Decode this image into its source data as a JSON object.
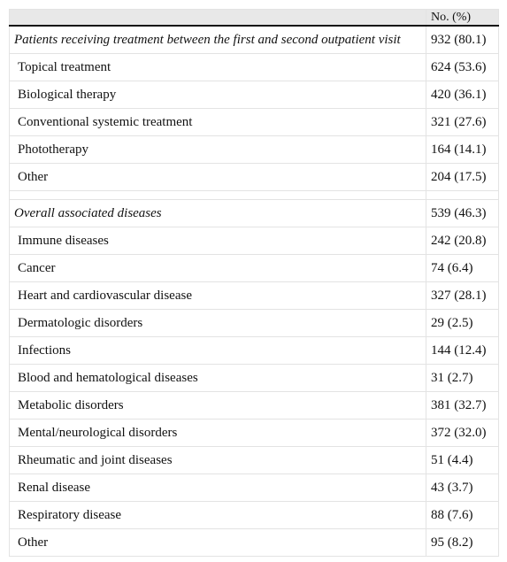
{
  "table": {
    "header": [
      "",
      "No. (%)"
    ],
    "sections": [
      {
        "title": "Patients receiving treatment between the first and second outpatient visit",
        "value": "932 (80.1)",
        "rows": [
          [
            "Topical treatment",
            "624 (53.6)"
          ],
          [
            "Biological therapy",
            "420 (36.1)"
          ],
          [
            "Conventional systemic treatment",
            "321 (27.6)"
          ],
          [
            "Phototherapy",
            "164 (14.1)"
          ],
          [
            "Other",
            "204 (17.5)"
          ]
        ]
      },
      {
        "title": "Overall associated diseases",
        "value": "539 (46.3)",
        "rows": [
          [
            "Immune diseases",
            "242 (20.8)"
          ],
          [
            "Cancer",
            "74 (6.4)"
          ],
          [
            "Heart and cardiovascular disease",
            "327 (28.1)"
          ],
          [
            "Dermatologic disorders",
            "29 (2.5)"
          ],
          [
            "Infections",
            "144 (12.4)"
          ],
          [
            "Blood and hematological diseases",
            "31 (2.7)"
          ],
          [
            "Metabolic disorders",
            "381 (32.7)"
          ],
          [
            "Mental/neurological disorders",
            "372 (32.0)"
          ],
          [
            "Rheumatic and joint diseases",
            "51 (4.4)"
          ],
          [
            "Renal disease",
            "43 (3.7)"
          ],
          [
            "Respiratory disease",
            "88 (7.6)"
          ],
          [
            "Other",
            "95 (8.2)"
          ]
        ]
      }
    ]
  }
}
